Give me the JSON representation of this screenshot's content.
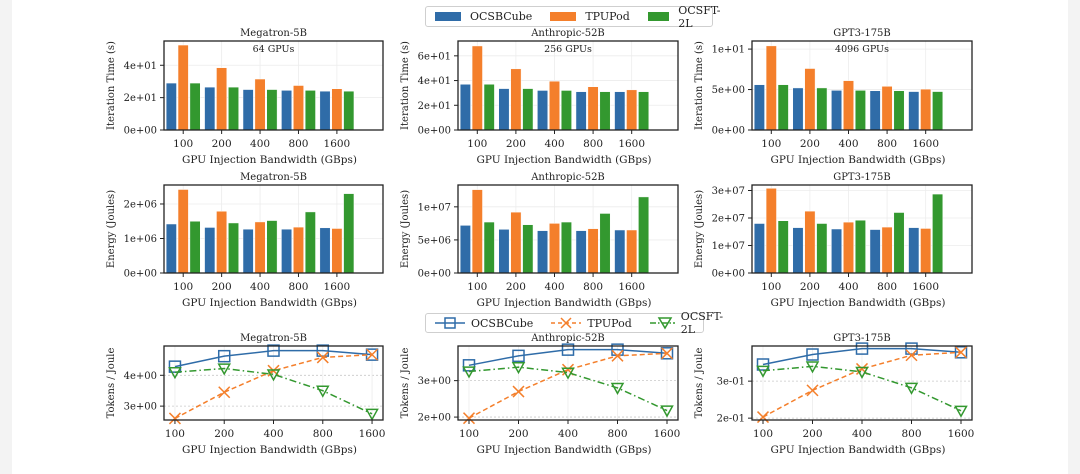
{
  "colors": {
    "OCSBCube": "#2f6ca8",
    "TPUPod": "#f47f2b",
    "OCSFT-2L": "#33982f"
  },
  "legend_bars": {
    "items": [
      "OCSBCube",
      "TPUPod",
      "OCSFT-2L"
    ]
  },
  "legend_lines": {
    "items": [
      "OCSBCube",
      "TPUPod",
      "OCSFT-2L"
    ]
  },
  "chart_data": [
    {
      "type": "bar",
      "row": "iteration",
      "title": "Megatron-5B",
      "annotation": "64 GPUs",
      "xlabel": "GPU Injection Bandwidth (GBps)",
      "ylabel": "Iteration Time (s)",
      "categories": [
        "100",
        "200",
        "400",
        "800",
        "1600"
      ],
      "ylim": [
        0,
        55
      ],
      "yticks": [
        0,
        20,
        40
      ],
      "ytick_labels": [
        "0e+00",
        "2e+01",
        "4e+01"
      ],
      "series": [
        {
          "name": "OCSBCube",
          "values": [
            29,
            26.5,
            25,
            24.5,
            24
          ]
        },
        {
          "name": "TPUPod",
          "values": [
            52.5,
            38.5,
            31.5,
            27.5,
            25.5
          ]
        },
        {
          "name": "OCSFT-2L",
          "values": [
            29,
            26.5,
            25,
            24.5,
            24
          ]
        }
      ]
    },
    {
      "type": "bar",
      "row": "iteration",
      "title": "Anthropic-52B",
      "annotation": "256 GPUs",
      "xlabel": "GPU Injection Bandwidth (GBps)",
      "ylabel": "Iteration Time (s)",
      "categories": [
        "100",
        "200",
        "400",
        "800",
        "1600"
      ],
      "ylim": [
        0,
        72
      ],
      "yticks": [
        0,
        20,
        40,
        60
      ],
      "ytick_labels": [
        "0e+00",
        "2e+01",
        "4e+01",
        "6e+01"
      ],
      "series": [
        {
          "name": "OCSBCube",
          "values": [
            37,
            33.5,
            32,
            31,
            31
          ]
        },
        {
          "name": "TPUPod",
          "values": [
            68,
            49.5,
            39.5,
            35,
            32.5
          ]
        },
        {
          "name": "OCSFT-2L",
          "values": [
            37,
            33.5,
            32,
            31,
            31
          ]
        }
      ]
    },
    {
      "type": "bar",
      "row": "iteration",
      "title": "GPT3-175B",
      "annotation": "4096 GPUs",
      "xlabel": "GPU Injection Bandwidth (GBps)",
      "ylabel": "Iteration Time (s)",
      "categories": [
        "100",
        "200",
        "400",
        "800",
        "1600"
      ],
      "ylim": [
        0,
        11
      ],
      "yticks": [
        0,
        5,
        10
      ],
      "ytick_labels": [
        "0e+00",
        "5e+00",
        "1e+01"
      ],
      "series": [
        {
          "name": "OCSBCube",
          "values": [
            5.6,
            5.2,
            4.9,
            4.85,
            4.75
          ]
        },
        {
          "name": "TPUPod",
          "values": [
            10.4,
            7.6,
            6.1,
            5.4,
            5.05
          ]
        },
        {
          "name": "OCSFT-2L",
          "values": [
            5.6,
            5.2,
            4.9,
            4.85,
            4.75
          ]
        }
      ]
    },
    {
      "type": "bar",
      "row": "energy",
      "title": "Megatron-5B",
      "xlabel": "GPU Injection Bandwidth (GBps)",
      "ylabel": "Energy (Joules)",
      "categories": [
        "100",
        "200",
        "400",
        "800",
        "1600"
      ],
      "ylim": [
        0,
        2550000
      ],
      "yticks": [
        0,
        1000000,
        2000000
      ],
      "ytick_labels": [
        "0e+00",
        "1e+06",
        "2e+06"
      ],
      "series": [
        {
          "name": "OCSBCube",
          "values": [
            1420000,
            1320000,
            1270000,
            1270000,
            1310000
          ]
        },
        {
          "name": "TPUPod",
          "values": [
            2420000,
            1790000,
            1480000,
            1330000,
            1290000
          ]
        },
        {
          "name": "OCSFT-2L",
          "values": [
            1500000,
            1450000,
            1520000,
            1770000,
            2300000
          ]
        }
      ]
    },
    {
      "type": "bar",
      "row": "energy",
      "title": "Anthropic-52B",
      "xlabel": "GPU Injection Bandwidth (GBps)",
      "ylabel": "Energy (Joules)",
      "categories": [
        "100",
        "200",
        "400",
        "800",
        "1600"
      ],
      "ylim": [
        0,
        13300000
      ],
      "yticks": [
        0,
        5000000,
        10000000
      ],
      "ytick_labels": [
        "0e+00",
        "5e+06",
        "1e+07"
      ],
      "series": [
        {
          "name": "OCSBCube",
          "values": [
            7200000,
            6600000,
            6400000,
            6400000,
            6500000
          ]
        },
        {
          "name": "TPUPod",
          "values": [
            12600000,
            9200000,
            7500000,
            6700000,
            6500000
          ]
        },
        {
          "name": "OCSFT-2L",
          "values": [
            7700000,
            7300000,
            7700000,
            9000000,
            11500000
          ]
        }
      ]
    },
    {
      "type": "bar",
      "row": "energy",
      "title": "GPT3-175B",
      "xlabel": "GPU Injection Bandwidth (GBps)",
      "ylabel": "Energy (Joules)",
      "categories": [
        "100",
        "200",
        "400",
        "800",
        "1600"
      ],
      "ylim": [
        0,
        32000000
      ],
      "yticks": [
        0,
        10000000,
        20000000,
        30000000
      ],
      "ytick_labels": [
        "0e+00",
        "1e+07",
        "2e+07",
        "3e+07"
      ],
      "series": [
        {
          "name": "OCSBCube",
          "values": [
            18000000,
            16500000,
            16000000,
            15800000,
            16500000
          ]
        },
        {
          "name": "TPUPod",
          "values": [
            30800000,
            22500000,
            18500000,
            16700000,
            16200000
          ]
        },
        {
          "name": "OCSFT-2L",
          "values": [
            19000000,
            18000000,
            19200000,
            22000000,
            28700000
          ]
        }
      ]
    },
    {
      "type": "line",
      "row": "efficiency",
      "title": "Megatron-5B",
      "xlabel": "GPU Injection Bandwidth (GBps)",
      "ylabel": "Tokens / Joule",
      "x": [
        "100",
        "200",
        "400",
        "800",
        "1600"
      ],
      "ylim": [
        2.55,
        4.95
      ],
      "yticks": [
        3,
        4
      ],
      "ytick_labels": [
        "3e+00",
        "4e+00"
      ],
      "series": [
        {
          "name": "OCSBCube",
          "marker": "square",
          "linestyle": "solid",
          "values": [
            4.28,
            4.62,
            4.8,
            4.8,
            4.67
          ]
        },
        {
          "name": "TPUPod",
          "marker": "x",
          "linestyle": "dashed",
          "values": [
            2.6,
            3.45,
            4.15,
            4.58,
            4.67
          ]
        },
        {
          "name": "OCSFT-2L",
          "marker": "triangle-down",
          "linestyle": "dashdot",
          "values": [
            4.1,
            4.22,
            4.03,
            3.5,
            2.75
          ]
        }
      ]
    },
    {
      "type": "line",
      "row": "efficiency",
      "title": "Anthropic-52B",
      "xlabel": "GPU Injection Bandwidth (GBps)",
      "ylabel": "Tokens / Joule",
      "x": [
        "100",
        "200",
        "400",
        "800",
        "1600"
      ],
      "ylim": [
        1.92,
        3.95
      ],
      "yticks": [
        2,
        3
      ],
      "ytick_labels": [
        "2e+00",
        "3e+00"
      ],
      "series": [
        {
          "name": "OCSBCube",
          "marker": "square",
          "linestyle": "solid",
          "values": [
            3.42,
            3.68,
            3.85,
            3.85,
            3.75
          ]
        },
        {
          "name": "TPUPod",
          "marker": "x",
          "linestyle": "dashed",
          "values": [
            1.97,
            2.7,
            3.3,
            3.68,
            3.75
          ]
        },
        {
          "name": "OCSFT-2L",
          "marker": "triangle-down",
          "linestyle": "dashdot",
          "values": [
            3.25,
            3.37,
            3.22,
            2.8,
            2.18
          ]
        }
      ]
    },
    {
      "type": "line",
      "row": "efficiency",
      "title": "GPT3-175B",
      "xlabel": "GPU Injection Bandwidth (GBps)",
      "ylabel": "Tokens / Joule",
      "x": [
        "100",
        "200",
        "400",
        "800",
        "1600"
      ],
      "ylim": [
        0.195,
        0.395
      ],
      "yticks": [
        0.2,
        0.3
      ],
      "ytick_labels": [
        "2e-01",
        "3e-01"
      ],
      "series": [
        {
          "name": "OCSBCube",
          "marker": "square",
          "linestyle": "solid",
          "values": [
            0.345,
            0.372,
            0.388,
            0.388,
            0.378
          ]
        },
        {
          "name": "TPUPod",
          "marker": "x",
          "linestyle": "dashed",
          "values": [
            0.203,
            0.275,
            0.333,
            0.37,
            0.378
          ]
        },
        {
          "name": "OCSFT-2L",
          "marker": "triangle-down",
          "linestyle": "dashdot",
          "values": [
            0.328,
            0.34,
            0.325,
            0.282,
            0.22
          ]
        }
      ]
    }
  ]
}
